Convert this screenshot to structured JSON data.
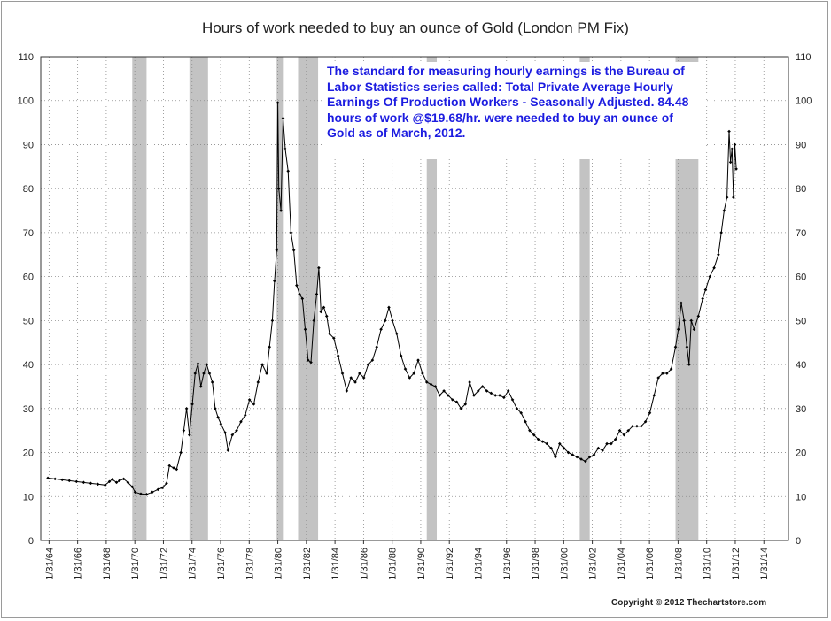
{
  "chart_data": {
    "type": "line",
    "title": "Hours of work needed to buy an ounce of Gold (London PM Fix)",
    "ylim": [
      0,
      110
    ],
    "y_ticks": [
      0,
      10,
      20,
      30,
      40,
      50,
      60,
      70,
      80,
      90,
      100,
      110
    ],
    "x_range": [
      1963.5,
      2015.8
    ],
    "x_tick_labels": [
      "1/31/64",
      "1/31/66",
      "1/31/68",
      "1/31/70",
      "1/31/72",
      "1/31/74",
      "1/31/76",
      "1/31/78",
      "1/31/80",
      "1/31/82",
      "1/31/84",
      "1/31/86",
      "1/31/88",
      "1/31/90",
      "1/31/92",
      "1/31/94",
      "1/31/96",
      "1/31/98",
      "1/31/00",
      "1/31/02",
      "1/31/04",
      "1/31/06",
      "1/31/08",
      "1/31/10",
      "1/31/12",
      "1/31/14"
    ],
    "x_tick_values": [
      1964.08,
      1966.08,
      1968.08,
      1970.08,
      1972.08,
      1974.08,
      1976.08,
      1978.08,
      1980.08,
      1982.08,
      1984.08,
      1986.08,
      1988.08,
      1990.08,
      1992.08,
      1994.08,
      1996.08,
      1998.08,
      2000.08,
      2002.08,
      2004.08,
      2006.08,
      2008.08,
      2010.08,
      2012.08,
      2014.08
    ],
    "grid": true,
    "recession_bands": [
      [
        1969.9,
        1970.9
      ],
      [
        1973.9,
        1975.2
      ],
      [
        1980.0,
        1980.5
      ],
      [
        1981.5,
        1982.9
      ],
      [
        1990.5,
        1991.2
      ],
      [
        2001.2,
        2001.9
      ],
      [
        2007.9,
        2009.5
      ]
    ],
    "series": [
      {
        "marker": "diamond",
        "color": "#000000",
        "points": [
          [
            1964.0,
            14.2
          ],
          [
            1964.5,
            14.0
          ],
          [
            1965.0,
            13.8
          ],
          [
            1965.5,
            13.6
          ],
          [
            1966.0,
            13.4
          ],
          [
            1966.5,
            13.2
          ],
          [
            1967.0,
            13.0
          ],
          [
            1967.5,
            12.8
          ],
          [
            1968.0,
            12.6
          ],
          [
            1968.3,
            13.4
          ],
          [
            1968.5,
            13.9
          ],
          [
            1968.8,
            13.2
          ],
          [
            1969.0,
            13.6
          ],
          [
            1969.3,
            14.0
          ],
          [
            1969.6,
            13.2
          ],
          [
            1969.9,
            12.2
          ],
          [
            1970.1,
            11.0
          ],
          [
            1970.5,
            10.6
          ],
          [
            1970.9,
            10.5
          ],
          [
            1971.3,
            11.0
          ],
          [
            1971.7,
            11.6
          ],
          [
            1972.0,
            12.0
          ],
          [
            1972.3,
            13.0
          ],
          [
            1972.5,
            17.0
          ],
          [
            1972.8,
            16.5
          ],
          [
            1973.0,
            16.2
          ],
          [
            1973.3,
            20.0
          ],
          [
            1973.5,
            25.0
          ],
          [
            1973.7,
            30.0
          ],
          [
            1973.9,
            24.0
          ],
          [
            1974.1,
            31.0
          ],
          [
            1974.3,
            38.0
          ],
          [
            1974.5,
            40.2
          ],
          [
            1974.7,
            35.0
          ],
          [
            1974.9,
            38.0
          ],
          [
            1975.1,
            40.0
          ],
          [
            1975.3,
            38.0
          ],
          [
            1975.5,
            36.0
          ],
          [
            1975.7,
            30.0
          ],
          [
            1975.9,
            28.0
          ],
          [
            1976.1,
            26.5
          ],
          [
            1976.4,
            24.5
          ],
          [
            1976.6,
            20.5
          ],
          [
            1976.9,
            24.0
          ],
          [
            1977.2,
            25.0
          ],
          [
            1977.5,
            27.0
          ],
          [
            1977.8,
            28.5
          ],
          [
            1978.1,
            32.0
          ],
          [
            1978.4,
            31.0
          ],
          [
            1978.7,
            36.0
          ],
          [
            1979.0,
            40.0
          ],
          [
            1979.3,
            38.0
          ],
          [
            1979.5,
            44.0
          ],
          [
            1979.7,
            50.0
          ],
          [
            1979.85,
            59.0
          ],
          [
            1980.0,
            66.0
          ],
          [
            1980.08,
            99.5
          ],
          [
            1980.15,
            80.0
          ],
          [
            1980.3,
            75.0
          ],
          [
            1980.45,
            96.0
          ],
          [
            1980.6,
            89.0
          ],
          [
            1980.8,
            84.0
          ],
          [
            1981.0,
            70.0
          ],
          [
            1981.2,
            66.0
          ],
          [
            1981.4,
            58.0
          ],
          [
            1981.6,
            56.0
          ],
          [
            1981.8,
            55.0
          ],
          [
            1982.0,
            48.0
          ],
          [
            1982.2,
            41.0
          ],
          [
            1982.4,
            40.5
          ],
          [
            1982.6,
            50.0
          ],
          [
            1982.8,
            56.0
          ],
          [
            1982.95,
            62.0
          ],
          [
            1983.1,
            52.0
          ],
          [
            1983.3,
            53.0
          ],
          [
            1983.5,
            51.0
          ],
          [
            1983.7,
            47.0
          ],
          [
            1984.0,
            46.0
          ],
          [
            1984.3,
            42.0
          ],
          [
            1984.6,
            38.0
          ],
          [
            1984.9,
            34.0
          ],
          [
            1985.2,
            37.0
          ],
          [
            1985.5,
            36.0
          ],
          [
            1985.8,
            38.0
          ],
          [
            1986.1,
            37.0
          ],
          [
            1986.4,
            40.0
          ],
          [
            1986.7,
            41.0
          ],
          [
            1987.0,
            44.0
          ],
          [
            1987.3,
            48.0
          ],
          [
            1987.6,
            50.0
          ],
          [
            1987.85,
            53.0
          ],
          [
            1988.1,
            50.0
          ],
          [
            1988.4,
            47.0
          ],
          [
            1988.7,
            42.0
          ],
          [
            1989.0,
            39.0
          ],
          [
            1989.3,
            37.0
          ],
          [
            1989.6,
            38.0
          ],
          [
            1989.9,
            41.0
          ],
          [
            1990.2,
            38.0
          ],
          [
            1990.5,
            36.0
          ],
          [
            1990.8,
            35.5
          ],
          [
            1991.1,
            35.0
          ],
          [
            1991.4,
            33.0
          ],
          [
            1991.7,
            34.0
          ],
          [
            1992.0,
            33.0
          ],
          [
            1992.3,
            32.0
          ],
          [
            1992.6,
            31.5
          ],
          [
            1992.9,
            30.0
          ],
          [
            1993.2,
            31.0
          ],
          [
            1993.5,
            36.0
          ],
          [
            1993.8,
            33.0
          ],
          [
            1994.1,
            34.0
          ],
          [
            1994.4,
            35.0
          ],
          [
            1994.7,
            34.0
          ],
          [
            1995.0,
            33.5
          ],
          [
            1995.3,
            33.0
          ],
          [
            1995.6,
            33.0
          ],
          [
            1995.9,
            32.5
          ],
          [
            1996.2,
            34.0
          ],
          [
            1996.5,
            32.0
          ],
          [
            1996.8,
            30.0
          ],
          [
            1997.1,
            29.0
          ],
          [
            1997.4,
            27.0
          ],
          [
            1997.7,
            25.0
          ],
          [
            1998.0,
            24.0
          ],
          [
            1998.3,
            23.0
          ],
          [
            1998.6,
            22.5
          ],
          [
            1998.9,
            22.0
          ],
          [
            1999.2,
            21.0
          ],
          [
            1999.5,
            19.0
          ],
          [
            1999.8,
            22.0
          ],
          [
            2000.1,
            21.0
          ],
          [
            2000.4,
            20.0
          ],
          [
            2000.7,
            19.5
          ],
          [
            2001.0,
            19.0
          ],
          [
            2001.3,
            18.5
          ],
          [
            2001.6,
            18.0
          ],
          [
            2001.9,
            19.0
          ],
          [
            2002.2,
            19.5
          ],
          [
            2002.5,
            21.0
          ],
          [
            2002.8,
            20.5
          ],
          [
            2003.1,
            22.0
          ],
          [
            2003.4,
            22.0
          ],
          [
            2003.7,
            23.0
          ],
          [
            2004.0,
            25.0
          ],
          [
            2004.3,
            24.0
          ],
          [
            2004.6,
            25.0
          ],
          [
            2004.9,
            26.0
          ],
          [
            2005.2,
            26.0
          ],
          [
            2005.5,
            26.0
          ],
          [
            2005.8,
            27.0
          ],
          [
            2006.1,
            29.0
          ],
          [
            2006.4,
            33.0
          ],
          [
            2006.7,
            37.0
          ],
          [
            2007.0,
            38.0
          ],
          [
            2007.3,
            38.0
          ],
          [
            2007.6,
            39.0
          ],
          [
            2007.9,
            44.0
          ],
          [
            2008.1,
            48.0
          ],
          [
            2008.3,
            54.0
          ],
          [
            2008.5,
            50.0
          ],
          [
            2008.7,
            44.0
          ],
          [
            2008.85,
            40.0
          ],
          [
            2009.0,
            50.0
          ],
          [
            2009.2,
            48.0
          ],
          [
            2009.5,
            51.0
          ],
          [
            2009.8,
            55.0
          ],
          [
            2010.0,
            57.0
          ],
          [
            2010.3,
            60.0
          ],
          [
            2010.6,
            62.0
          ],
          [
            2010.9,
            65.0
          ],
          [
            2011.1,
            70.0
          ],
          [
            2011.3,
            75.0
          ],
          [
            2011.5,
            78.0
          ],
          [
            2011.65,
            93.0
          ],
          [
            2011.75,
            86.0
          ],
          [
            2011.85,
            89.0
          ],
          [
            2011.95,
            78.0
          ],
          [
            2012.05,
            90.0
          ],
          [
            2012.15,
            84.48
          ]
        ]
      }
    ]
  },
  "annotation": "The standard for measuring hourly earnings is the Bureau of Labor Statistics series called:  Total Private Average Hourly Earnings Of Production Workers - Seasonally Adjusted.  84.48 hours of work @$19.68/hr. were needed to buy an ounce of Gold as of March, 2012.",
  "copyright": "Copyright © 2012 Thechartstore.com"
}
